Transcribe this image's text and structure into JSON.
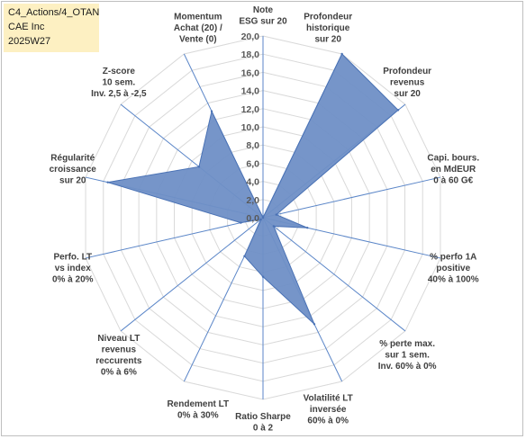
{
  "info_box": {
    "line1": "C4_Actions/4_OTAN",
    "line2": "CAE Inc",
    "line3": "2025W27"
  },
  "colors": {
    "fill": "#6f8fc6",
    "stroke": "#4a72b5",
    "spoke": "#5b86c8",
    "grid": "#d9d9d9",
    "info_bg": "#fdf0c2"
  },
  "chart_data": {
    "type": "radar",
    "rlim": [
      0,
      20
    ],
    "ticks": [
      "0,0",
      "2,0",
      "4,0",
      "6,0",
      "8,0",
      "10,0",
      "12,0",
      "14,0",
      "16,0",
      "18,0",
      "20,0"
    ],
    "grid": true,
    "axes": [
      {
        "label": [
          "Note",
          "ESG sur 20"
        ],
        "value": 0.0
      },
      {
        "label": [
          "Profondeur",
          "historique",
          "sur 20"
        ],
        "value": 20.0
      },
      {
        "label": [
          "Profondeur",
          "revenus",
          "sur 20"
        ],
        "value": 19.0
      },
      {
        "label": [
          "Capi. bours.",
          "en MdEUR",
          "0 à 60 G€"
        ],
        "value": 1.5
      },
      {
        "label": [
          "% perfo 1A",
          "positive",
          "40% à 100%"
        ],
        "value": 5.0
      },
      {
        "label": [
          "% perte max.",
          "sur 1 sem.",
          "Inv. 60% à 0%"
        ],
        "value": 1.5
      },
      {
        "label": [
          "Volatilité LT",
          "inversée",
          "60% à 0%"
        ],
        "value": 13.0
      },
      {
        "label": [
          "Ratio Sharpe",
          "0 à 2"
        ],
        "value": 6.5
      },
      {
        "label": [
          "Rendement LT",
          "0% à 30%"
        ],
        "value": 4.7
      },
      {
        "label": [
          "Niveau LT",
          "revenus",
          "reccurents",
          "0% à 6%"
        ],
        "value": 0.3
      },
      {
        "label": [
          "Perfo. LT",
          "vs index",
          "0% à 20%"
        ],
        "value": 2.5
      },
      {
        "label": [
          "Régularité",
          "croissance",
          "sur 20"
        ],
        "value": 17.5
      },
      {
        "label": [
          "Z-score",
          "10 sem.",
          "Inv. 2,5 à -2,5"
        ],
        "value": 9.0
      },
      {
        "label": [
          "Momentum",
          "Achat (20) /",
          "Vente (0)"
        ],
        "value": 13.0
      }
    ]
  }
}
